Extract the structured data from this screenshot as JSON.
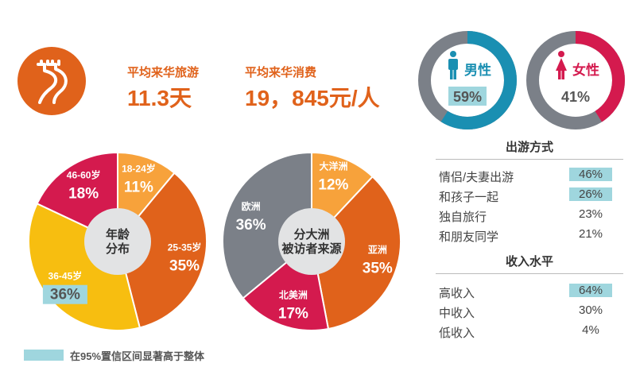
{
  "colors": {
    "orange": "#e0621b",
    "light_orange": "#f7a23b",
    "red": "#d41a4e",
    "yellow": "#f7be10",
    "gray": "#7b8088",
    "light_gray": "#e2e3e4",
    "teal": "#1a8fb2",
    "highlight": "#9fd6de"
  },
  "icons": [
    "great-wall-icon",
    "male-person-icon",
    "female-person-icon"
  ],
  "stats": {
    "days_label": "平均来华旅游",
    "days_value": "11.3天",
    "spend_label": "平均来华消费",
    "spend_value": "19，845元/人"
  },
  "gender": {
    "male_label": "男性",
    "male_value": "59%",
    "male_share": 59,
    "female_label": "女性",
    "female_value": "41%",
    "female_share": 41
  },
  "chart_data": [
    {
      "type": "pie",
      "center_label": "年龄\n分布",
      "slices": [
        {
          "label": "18-24岁",
          "value": 11,
          "display": "11%",
          "color": "#f7a23b",
          "highlight": false
        },
        {
          "label": "25-35岁",
          "value": 35,
          "display": "35%",
          "color": "#e0621b",
          "highlight": false
        },
        {
          "label": "36-45岁",
          "value": 36,
          "display": "36%",
          "color": "#f7be10",
          "highlight": true
        },
        {
          "label": "46-60岁",
          "value": 18,
          "display": "18%",
          "color": "#d41a4e",
          "highlight": false
        }
      ]
    },
    {
      "type": "pie",
      "center_label": "分大洲\n被访者来源",
      "slices": [
        {
          "label": "大洋洲",
          "value": 12,
          "display": "12%",
          "color": "#f7a23b",
          "highlight": false
        },
        {
          "label": "亚洲",
          "value": 35,
          "display": "35%",
          "color": "#e0621b",
          "highlight": false
        },
        {
          "label": "北美洲",
          "value": 17,
          "display": "17%",
          "color": "#d41a4e",
          "highlight": false
        },
        {
          "label": "欧洲",
          "value": 36,
          "display": "36%",
          "color": "#7b8088",
          "highlight": false
        }
      ]
    },
    {
      "type": "table",
      "title": "出游方式",
      "rows": [
        {
          "label": "情侣/夫妻出游",
          "value": "46%",
          "highlight": true
        },
        {
          "label": "和孩子一起",
          "value": "26%",
          "highlight": true
        },
        {
          "label": "独自旅行",
          "value": "23%",
          "highlight": false
        },
        {
          "label": "和朋友同学",
          "value": "21%",
          "highlight": false
        }
      ]
    },
    {
      "type": "table",
      "title": "收入水平",
      "rows": [
        {
          "label": "高收入",
          "value": "64%",
          "highlight": true
        },
        {
          "label": "中收入",
          "value": "30%",
          "highlight": false
        },
        {
          "label": "低收入",
          "value": "4%",
          "highlight": false
        }
      ]
    }
  ],
  "legend": {
    "text": "在95%置信区间显著高于整体"
  }
}
